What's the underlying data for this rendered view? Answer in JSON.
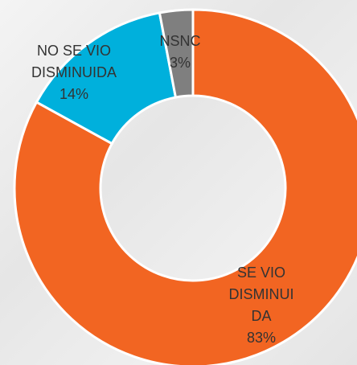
{
  "chart_data": {
    "type": "donut",
    "categories": [
      "SE VIO DISMINUIDA",
      "NO SE VIO DISMINUIDA",
      "NSNC"
    ],
    "values": [
      83,
      14,
      3
    ],
    "value_labels": [
      "83%",
      "14%",
      "3%"
    ],
    "colors": [
      "#f26522",
      "#00b0dc",
      "#7f7f7f"
    ]
  }
}
